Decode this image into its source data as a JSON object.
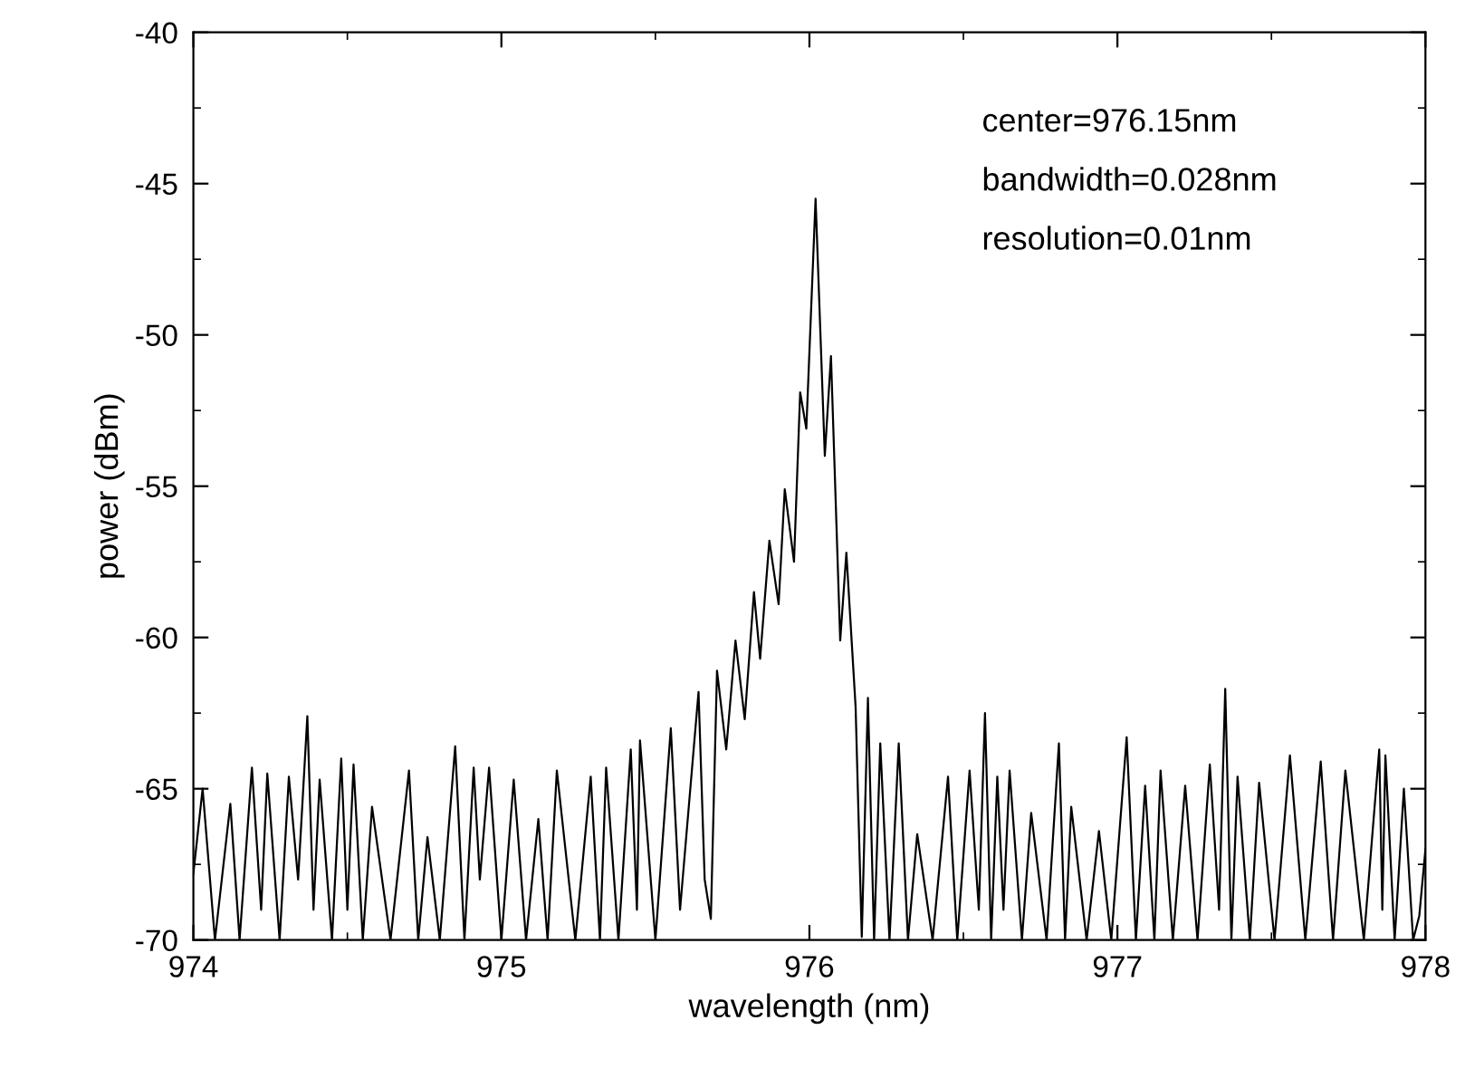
{
  "chart_data": {
    "type": "line",
    "xlabel": "wavelength (nm)",
    "ylabel": "power (dBm)",
    "xlim": [
      974,
      978
    ],
    "xticks": [
      974,
      975,
      976,
      977,
      978
    ],
    "ylim": [
      -70,
      -40
    ],
    "yticks": [
      -70,
      -65,
      -60,
      -55,
      -50,
      -45,
      -40
    ],
    "marker": "none",
    "line_style": "solid",
    "annotations": [
      "center=976.15nm",
      "bandwidth=0.028nm",
      "resolution=0.01nm"
    ],
    "series": [
      {
        "color": "#000000",
        "x": [
          974.0,
          974.03,
          974.07,
          974.12,
          974.15,
          974.19,
          974.22,
          974.24,
          974.28,
          974.31,
          974.34,
          974.37,
          974.39,
          974.41,
          974.45,
          974.48,
          974.5,
          974.52,
          974.55,
          974.58,
          974.64,
          974.7,
          974.73,
          974.76,
          974.8,
          974.85,
          974.88,
          974.91,
          974.93,
          974.96,
          975.0,
          975.04,
          975.08,
          975.12,
          975.15,
          975.18,
          975.24,
          975.29,
          975.32,
          975.34,
          975.38,
          975.42,
          975.44,
          975.45,
          975.5,
          975.55,
          975.58,
          975.64,
          975.66,
          975.68,
          975.7,
          975.73,
          975.76,
          975.79,
          975.82,
          975.84,
          975.87,
          975.9,
          975.92,
          975.95,
          975.97,
          975.99,
          976.02,
          976.05,
          976.07,
          976.1,
          976.12,
          976.15,
          976.17,
          976.19,
          976.21,
          976.23,
          976.26,
          976.29,
          976.32,
          976.35,
          976.4,
          976.45,
          976.48,
          976.52,
          976.55,
          976.57,
          976.59,
          976.61,
          976.63,
          976.65,
          976.69,
          976.72,
          976.77,
          976.81,
          976.83,
          976.85,
          976.9,
          976.94,
          976.98,
          977.03,
          977.06,
          977.09,
          977.12,
          977.14,
          977.18,
          977.22,
          977.26,
          977.3,
          977.33,
          977.35,
          977.37,
          977.39,
          977.43,
          977.46,
          977.51,
          977.56,
          977.61,
          977.66,
          977.7,
          977.74,
          977.8,
          977.85,
          977.86,
          977.87,
          977.9,
          977.93,
          977.96,
          977.98,
          978.0
        ],
        "values": [
          -67.8,
          -65.0,
          -70,
          -65.5,
          -70,
          -64.3,
          -69,
          -64.5,
          -70,
          -64.6,
          -68,
          -62.6,
          -69,
          -64.7,
          -70,
          -64.0,
          -69,
          -64.2,
          -70,
          -65.6,
          -70,
          -64.4,
          -70,
          -66.6,
          -70,
          -63.6,
          -70,
          -64.3,
          -68,
          -64.3,
          -70,
          -64.7,
          -70,
          -66.0,
          -70,
          -64.4,
          -70,
          -64.6,
          -70,
          -64.3,
          -70,
          -63.7,
          -69,
          -63.4,
          -70,
          -63.0,
          -69,
          -61.8,
          -68,
          -69.3,
          -61.1,
          -63.7,
          -60.1,
          -62.7,
          -58.5,
          -60.7,
          -56.8,
          -58.9,
          -55.1,
          -57.5,
          -51.9,
          -53.1,
          -45.5,
          -54.0,
          -50.7,
          -60.1,
          -57.2,
          -62.3,
          -69.9,
          -62.0,
          -70,
          -63.5,
          -70,
          -63.5,
          -70,
          -66.5,
          -70,
          -64.6,
          -70,
          -64.4,
          -69,
          -62.5,
          -70,
          -64.6,
          -69,
          -64.4,
          -70,
          -65.8,
          -70,
          -63.5,
          -70,
          -65.6,
          -70,
          -66.4,
          -70,
          -63.3,
          -70,
          -64.9,
          -70,
          -64.4,
          -70,
          -64.9,
          -70,
          -64.2,
          -69,
          -61.7,
          -70,
          -64.6,
          -70,
          -64.8,
          -70,
          -63.9,
          -70,
          -64.1,
          -70,
          -64.4,
          -70,
          -63.7,
          -69,
          -63.9,
          -70,
          -65.0,
          -70,
          -69.2,
          -67.0
        ]
      }
    ]
  }
}
